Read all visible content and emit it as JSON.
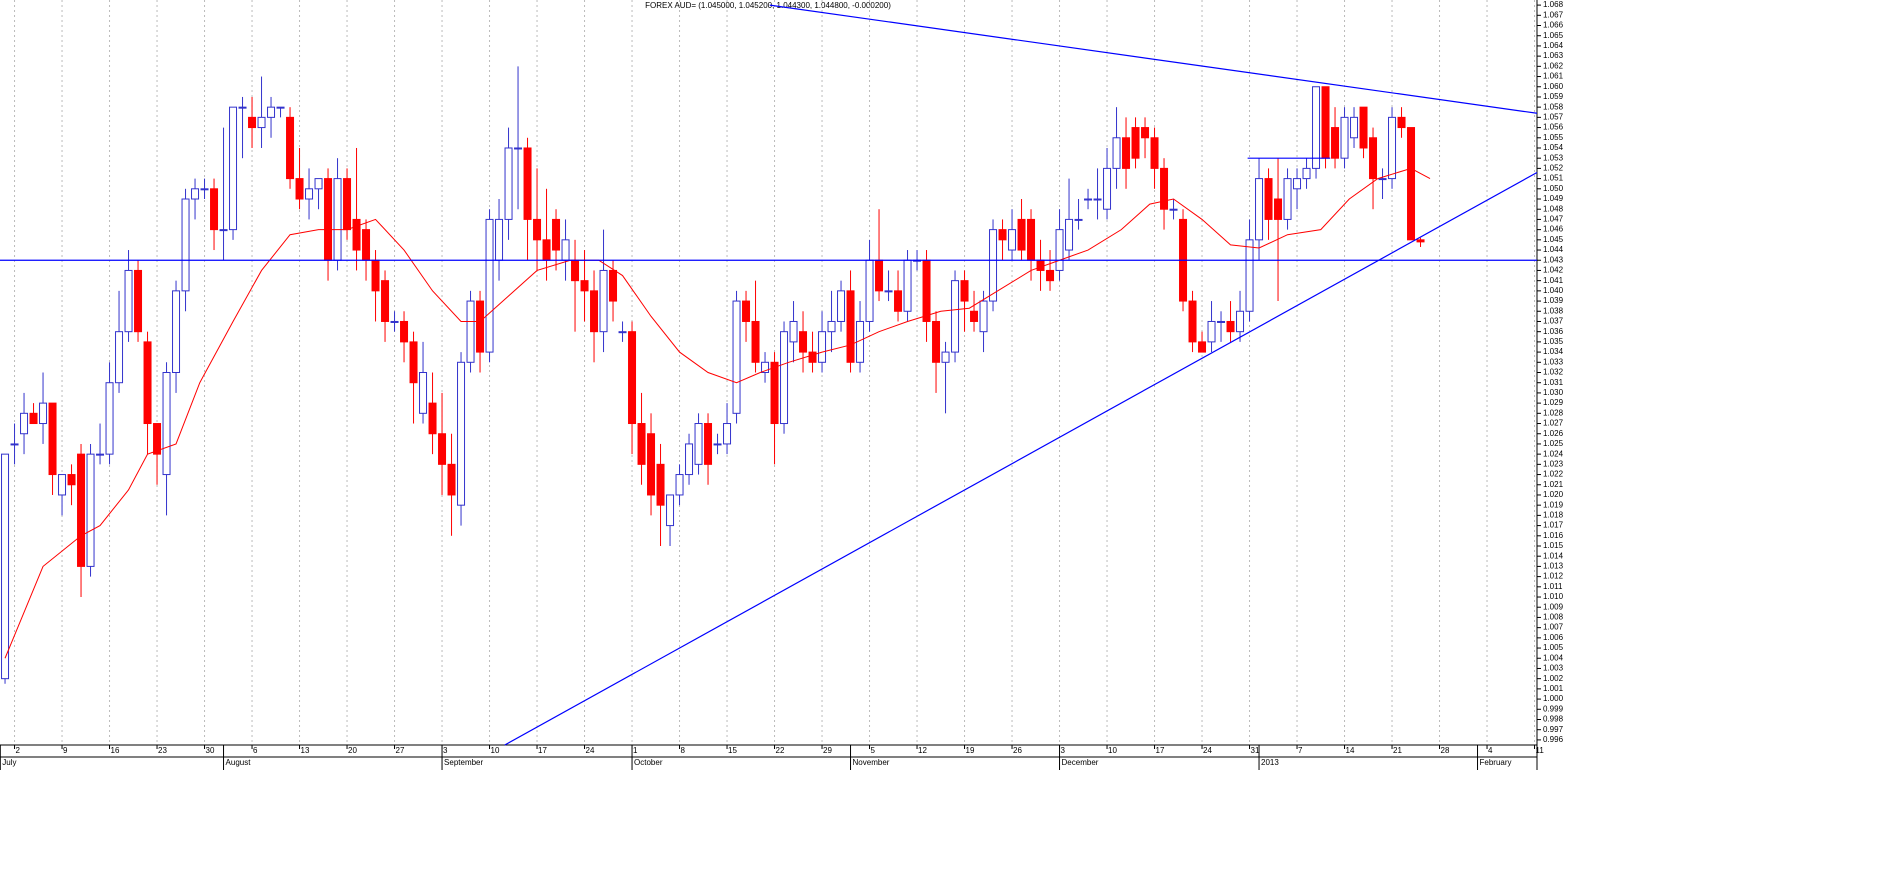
{
  "chart_data": {
    "type": "candlestick",
    "title": "FOREX AUD= (1.045000, 1.045200, 1.044300, 1.044800, -0.000200)",
    "xlim": [
      -0.53,
      161.26
    ],
    "ylim": [
      0.9955,
      1.0685
    ],
    "up_color": "#3333cc",
    "down_color": "#ff0000",
    "grid": true,
    "candles": [
      [
        1.002,
        1.024,
        1.0015,
        1.024
      ],
      [
        1.025,
        1.027,
        1.023,
        1.025
      ],
      [
        1.026,
        1.03,
        1.024,
        1.028
      ],
      [
        1.028,
        1.029,
        1.027,
        1.027
      ],
      [
        1.027,
        1.032,
        1.025,
        1.029
      ],
      [
        1.029,
        1.029,
        1.02,
        1.022
      ],
      [
        1.02,
        1.022,
        1.018,
        1.022
      ],
      [
        1.022,
        1.023,
        1.019,
        1.021
      ],
      [
        1.024,
        1.025,
        1.01,
        1.013
      ],
      [
        1.013,
        1.025,
        1.012,
        1.024
      ],
      [
        1.024,
        1.027,
        1.023,
        1.024
      ],
      [
        1.024,
        1.033,
        1.023,
        1.031
      ],
      [
        1.031,
        1.04,
        1.03,
        1.036
      ],
      [
        1.036,
        1.044,
        1.035,
        1.042
      ],
      [
        1.042,
        1.043,
        1.035,
        1.036
      ],
      [
        1.035,
        1.036,
        1.024,
        1.027
      ],
      [
        1.027,
        1.027,
        1.021,
        1.024
      ],
      [
        1.022,
        1.033,
        1.018,
        1.032
      ],
      [
        1.032,
        1.041,
        1.03,
        1.04
      ],
      [
        1.04,
        1.05,
        1.038,
        1.049
      ],
      [
        1.049,
        1.051,
        1.047,
        1.05
      ],
      [
        1.05,
        1.051,
        1.049,
        1.05
      ],
      [
        1.05,
        1.051,
        1.044,
        1.046
      ],
      [
        1.046,
        1.056,
        1.043,
        1.046
      ],
      [
        1.046,
        1.058,
        1.045,
        1.058
      ],
      [
        1.058,
        1.059,
        1.053,
        1.058
      ],
      [
        1.057,
        1.059,
        1.054,
        1.056
      ],
      [
        1.056,
        1.061,
        1.054,
        1.057
      ],
      [
        1.057,
        1.059,
        1.055,
        1.058
      ],
      [
        1.058,
        1.058,
        1.057,
        1.058
      ],
      [
        1.057,
        1.058,
        1.05,
        1.051
      ],
      [
        1.051,
        1.054,
        1.048,
        1.049
      ],
      [
        1.049,
        1.052,
        1.047,
        1.05
      ],
      [
        1.05,
        1.051,
        1.048,
        1.051
      ],
      [
        1.051,
        1.052,
        1.041,
        1.043
      ],
      [
        1.043,
        1.053,
        1.042,
        1.051
      ],
      [
        1.051,
        1.052,
        1.045,
        1.046
      ],
      [
        1.047,
        1.054,
        1.042,
        1.044
      ],
      [
        1.046,
        1.047,
        1.041,
        1.043
      ],
      [
        1.043,
        1.044,
        1.037,
        1.04
      ],
      [
        1.041,
        1.042,
        1.035,
        1.037
      ],
      [
        1.037,
        1.038,
        1.036,
        1.037
      ],
      [
        1.037,
        1.038,
        1.033,
        1.035
      ],
      [
        1.035,
        1.036,
        1.027,
        1.031
      ],
      [
        1.028,
        1.035,
        1.027,
        1.032
      ],
      [
        1.029,
        1.032,
        1.024,
        1.026
      ],
      [
        1.026,
        1.03,
        1.02,
        1.023
      ],
      [
        1.023,
        1.026,
        1.016,
        1.02
      ],
      [
        1.019,
        1.034,
        1.017,
        1.033
      ],
      [
        1.033,
        1.04,
        1.032,
        1.039
      ],
      [
        1.039,
        1.04,
        1.032,
        1.034
      ],
      [
        1.034,
        1.048,
        1.033,
        1.047
      ],
      [
        1.043,
        1.049,
        1.041,
        1.047
      ],
      [
        1.047,
        1.056,
        1.045,
        1.054
      ],
      [
        1.054,
        1.062,
        1.048,
        1.054
      ],
      [
        1.054,
        1.055,
        1.043,
        1.047
      ],
      [
        1.047,
        1.052,
        1.042,
        1.045
      ],
      [
        1.045,
        1.05,
        1.041,
        1.043
      ],
      [
        1.047,
        1.048,
        1.042,
        1.044
      ],
      [
        1.043,
        1.047,
        1.041,
        1.045
      ],
      [
        1.043,
        1.045,
        1.036,
        1.041
      ],
      [
        1.041,
        1.044,
        1.037,
        1.04
      ],
      [
        1.04,
        1.042,
        1.033,
        1.036
      ],
      [
        1.036,
        1.046,
        1.034,
        1.042
      ],
      [
        1.042,
        1.043,
        1.037,
        1.039
      ],
      [
        1.036,
        1.037,
        1.035,
        1.036
      ],
      [
        1.036,
        1.037,
        1.024,
        1.027
      ],
      [
        1.027,
        1.03,
        1.021,
        1.023
      ],
      [
        1.026,
        1.028,
        1.018,
        1.02
      ],
      [
        1.023,
        1.025,
        1.015,
        1.019
      ],
      [
        1.017,
        1.02,
        1.015,
        1.02
      ],
      [
        1.02,
        1.023,
        1.019,
        1.022
      ],
      [
        1.022,
        1.026,
        1.021,
        1.025
      ],
      [
        1.023,
        1.028,
        1.022,
        1.027
      ],
      [
        1.027,
        1.028,
        1.021,
        1.023
      ],
      [
        1.025,
        1.026,
        1.024,
        1.025
      ],
      [
        1.025,
        1.029,
        1.024,
        1.027
      ],
      [
        1.028,
        1.04,
        1.027,
        1.039
      ],
      [
        1.039,
        1.04,
        1.035,
        1.037
      ],
      [
        1.037,
        1.041,
        1.032,
        1.033
      ],
      [
        1.032,
        1.034,
        1.031,
        1.033
      ],
      [
        1.033,
        1.034,
        1.023,
        1.027
      ],
      [
        1.027,
        1.037,
        1.026,
        1.036
      ],
      [
        1.035,
        1.039,
        1.033,
        1.037
      ],
      [
        1.036,
        1.038,
        1.032,
        1.034
      ],
      [
        1.034,
        1.036,
        1.032,
        1.033
      ],
      [
        1.033,
        1.038,
        1.032,
        1.036
      ],
      [
        1.036,
        1.04,
        1.034,
        1.037
      ],
      [
        1.037,
        1.041,
        1.036,
        1.04
      ],
      [
        1.04,
        1.042,
        1.032,
        1.033
      ],
      [
        1.033,
        1.039,
        1.032,
        1.037
      ],
      [
        1.037,
        1.045,
        1.036,
        1.043
      ],
      [
        1.043,
        1.048,
        1.039,
        1.04
      ],
      [
        1.04,
        1.042,
        1.039,
        1.04
      ],
      [
        1.04,
        1.042,
        1.037,
        1.038
      ],
      [
        1.038,
        1.044,
        1.037,
        1.043
      ],
      [
        1.043,
        1.044,
        1.042,
        1.043
      ],
      [
        1.043,
        1.044,
        1.035,
        1.037
      ],
      [
        1.037,
        1.038,
        1.03,
        1.033
      ],
      [
        1.033,
        1.035,
        1.028,
        1.034
      ],
      [
        1.034,
        1.042,
        1.033,
        1.041
      ],
      [
        1.041,
        1.042,
        1.036,
        1.039
      ],
      [
        1.038,
        1.04,
        1.036,
        1.037
      ],
      [
        1.036,
        1.04,
        1.034,
        1.039
      ],
      [
        1.039,
        1.047,
        1.038,
        1.046
      ],
      [
        1.046,
        1.047,
        1.043,
        1.045
      ],
      [
        1.044,
        1.048,
        1.043,
        1.046
      ],
      [
        1.047,
        1.049,
        1.043,
        1.044
      ],
      [
        1.047,
        1.048,
        1.041,
        1.043
      ],
      [
        1.043,
        1.045,
        1.04,
        1.042
      ],
      [
        1.042,
        1.044,
        1.04,
        1.041
      ],
      [
        1.042,
        1.048,
        1.041,
        1.046
      ],
      [
        1.044,
        1.051,
        1.043,
        1.047
      ],
      [
        1.047,
        1.049,
        1.046,
        1.047
      ],
      [
        1.049,
        1.05,
        1.048,
        1.049
      ],
      [
        1.049,
        1.052,
        1.047,
        1.049
      ],
      [
        1.048,
        1.054,
        1.047,
        1.052
      ],
      [
        1.052,
        1.058,
        1.05,
        1.055
      ],
      [
        1.055,
        1.057,
        1.05,
        1.052
      ],
      [
        1.056,
        1.057,
        1.052,
        1.053
      ],
      [
        1.056,
        1.057,
        1.053,
        1.055
      ],
      [
        1.055,
        1.056,
        1.05,
        1.052
      ],
      [
        1.052,
        1.053,
        1.046,
        1.048
      ],
      [
        1.048,
        1.049,
        1.047,
        1.048
      ],
      [
        1.047,
        1.048,
        1.038,
        1.039
      ],
      [
        1.039,
        1.04,
        1.034,
        1.035
      ],
      [
        1.035,
        1.036,
        1.034,
        1.034
      ],
      [
        1.035,
        1.039,
        1.034,
        1.037
      ],
      [
        1.037,
        1.038,
        1.035,
        1.037
      ],
      [
        1.037,
        1.039,
        1.035,
        1.036
      ],
      [
        1.036,
        1.04,
        1.035,
        1.038
      ],
      [
        1.038,
        1.047,
        1.037,
        1.045
      ],
      [
        1.045,
        1.053,
        1.043,
        1.051
      ],
      [
        1.051,
        1.052,
        1.045,
        1.047
      ],
      [
        1.049,
        1.053,
        1.039,
        1.047
      ],
      [
        1.047,
        1.052,
        1.046,
        1.051
      ],
      [
        1.05,
        1.052,
        1.048,
        1.051
      ],
      [
        1.051,
        1.053,
        1.05,
        1.052
      ],
      [
        1.052,
        1.06,
        1.051,
        1.06
      ],
      [
        1.06,
        1.06,
        1.052,
        1.053
      ],
      [
        1.056,
        1.058,
        1.052,
        1.053
      ],
      [
        1.053,
        1.058,
        1.052,
        1.057
      ],
      [
        1.055,
        1.058,
        1.054,
        1.057
      ],
      [
        1.058,
        1.058,
        1.053,
        1.054
      ],
      [
        1.055,
        1.056,
        1.048,
        1.051
      ],
      [
        1.051,
        1.052,
        1.049,
        1.051
      ],
      [
        1.051,
        1.058,
        1.05,
        1.057
      ],
      [
        1.057,
        1.058,
        1.055,
        1.056
      ],
      [
        1.056,
        1.056,
        1.045,
        1.045
      ],
      [
        1.045,
        1.0452,
        1.0443,
        1.0448
      ]
    ],
    "moving_average": {
      "color": "#ff0000",
      "x": [
        0,
        4,
        8,
        10,
        13,
        15,
        18,
        20.5,
        24,
        27,
        30,
        33,
        36,
        39,
        42,
        45,
        48,
        50,
        53,
        56,
        59.5,
        62.5,
        65,
        68,
        71,
        74,
        77,
        79.5,
        82.5,
        86,
        89,
        92,
        95,
        98.5,
        101.5,
        104.5,
        108,
        111,
        114,
        117.5,
        120.5,
        123,
        126,
        129,
        132,
        135,
        138.5,
        141.5,
        144.5,
        148,
        150
      ],
      "values": [
        1.004,
        1.013,
        1.016,
        1.017,
        1.0205,
        1.024,
        1.025,
        1.031,
        1.037,
        1.042,
        1.0455,
        1.046,
        1.046,
        1.047,
        1.044,
        1.04,
        1.037,
        1.037,
        1.0395,
        1.042,
        1.043,
        1.043,
        1.0415,
        1.0375,
        1.034,
        1.032,
        1.031,
        1.032,
        1.033,
        1.034,
        1.0347,
        1.036,
        1.037,
        1.038,
        1.0383,
        1.04,
        1.042,
        1.043,
        1.044,
        1.046,
        1.0485,
        1.049,
        1.047,
        1.0445,
        1.0442,
        1.0455,
        1.046,
        1.049,
        1.051,
        1.052,
        1.051
      ]
    },
    "trendlines": {
      "color": "#0000ff",
      "lines": [
        {
          "from": [
            -0.53,
            1.043
          ],
          "to": [
            161.26,
            1.043
          ]
        },
        {
          "from": [
            52.6,
            0.9955
          ],
          "to": [
            161.26,
            1.0516
          ]
        },
        {
          "from": [
            80.5,
            1.068
          ],
          "to": [
            161.26,
            1.0574
          ]
        },
        {
          "from": [
            130.8,
            1.053
          ],
          "to": [
            139.5,
            1.053
          ]
        }
      ]
    },
    "xticks": [
      {
        "value": 1,
        "label": "2"
      },
      {
        "value": 6,
        "label": "9"
      },
      {
        "value": 11,
        "label": "16"
      },
      {
        "value": 16,
        "label": "23"
      },
      {
        "value": 21,
        "label": "30"
      },
      {
        "value": 26,
        "label": "6"
      },
      {
        "value": 31,
        "label": "13"
      },
      {
        "value": 36,
        "label": "20"
      },
      {
        "value": 41,
        "label": "27"
      },
      {
        "value": 46,
        "label": "3"
      },
      {
        "value": 51,
        "label": "10"
      },
      {
        "value": 56,
        "label": "17"
      },
      {
        "value": 61,
        "label": "24"
      },
      {
        "value": 66,
        "label": "1"
      },
      {
        "value": 71,
        "label": "8"
      },
      {
        "value": 76,
        "label": "15"
      },
      {
        "value": 81,
        "label": "22"
      },
      {
        "value": 86,
        "label": "29"
      },
      {
        "value": 91,
        "label": "5"
      },
      {
        "value": 96,
        "label": "12"
      },
      {
        "value": 101,
        "label": "19"
      },
      {
        "value": 106,
        "label": "26"
      },
      {
        "value": 111,
        "label": "3"
      },
      {
        "value": 116,
        "label": "10"
      },
      {
        "value": 121,
        "label": "17"
      },
      {
        "value": 126,
        "label": "24"
      },
      {
        "value": 131,
        "label": "31"
      },
      {
        "value": 136,
        "label": "7"
      },
      {
        "value": 141,
        "label": "14"
      },
      {
        "value": 146,
        "label": "21"
      },
      {
        "value": 151,
        "label": "28"
      },
      {
        "value": 156,
        "label": "4"
      },
      {
        "value": 161,
        "label": "11"
      }
    ],
    "month_ticks": [
      {
        "value": -0.5,
        "label": "July"
      },
      {
        "value": 23,
        "label": "August"
      },
      {
        "value": 46,
        "label": "September"
      },
      {
        "value": 66,
        "label": "October"
      },
      {
        "value": 89,
        "label": "November"
      },
      {
        "value": 111,
        "label": "December"
      },
      {
        "value": 132,
        "label": "2013"
      },
      {
        "value": 155,
        "label": "February"
      }
    ],
    "yticks": [
      0.996,
      0.997,
      0.998,
      0.999,
      {
        "value": 1,
        "label": "1.000"
      },
      1.001,
      1.002,
      1.003,
      1.004,
      1.005,
      1.006,
      1.007,
      1.008,
      1.009,
      {
        "value": 1.01,
        "label": "1.010"
      },
      1.011,
      1.012,
      1.013,
      1.014,
      1.015,
      1.016,
      1.017,
      1.018,
      1.019,
      {
        "value": 1.02,
        "label": "1.020"
      },
      1.021,
      1.022,
      1.023,
      1.024,
      1.025,
      1.026,
      1.027,
      1.028,
      1.029,
      {
        "value": 1.03,
        "label": "1.030"
      },
      1.031,
      1.032,
      1.033,
      1.034,
      1.035,
      1.036,
      1.037,
      1.038,
      1.039,
      {
        "value": 1.04,
        "label": "1.040"
      },
      1.041,
      1.042,
      1.043,
      1.044,
      1.045,
      1.046,
      1.047,
      1.048,
      1.049,
      {
        "value": 1.05,
        "label": "1.050"
      },
      1.051,
      1.052,
      1.053,
      1.054,
      1.055,
      1.056,
      1.057,
      1.058,
      1.059,
      {
        "value": 1.06,
        "label": "1.060"
      },
      1.061,
      1.062,
      1.063,
      1.064,
      1.065,
      1.066,
      1.067,
      1.068
    ]
  }
}
